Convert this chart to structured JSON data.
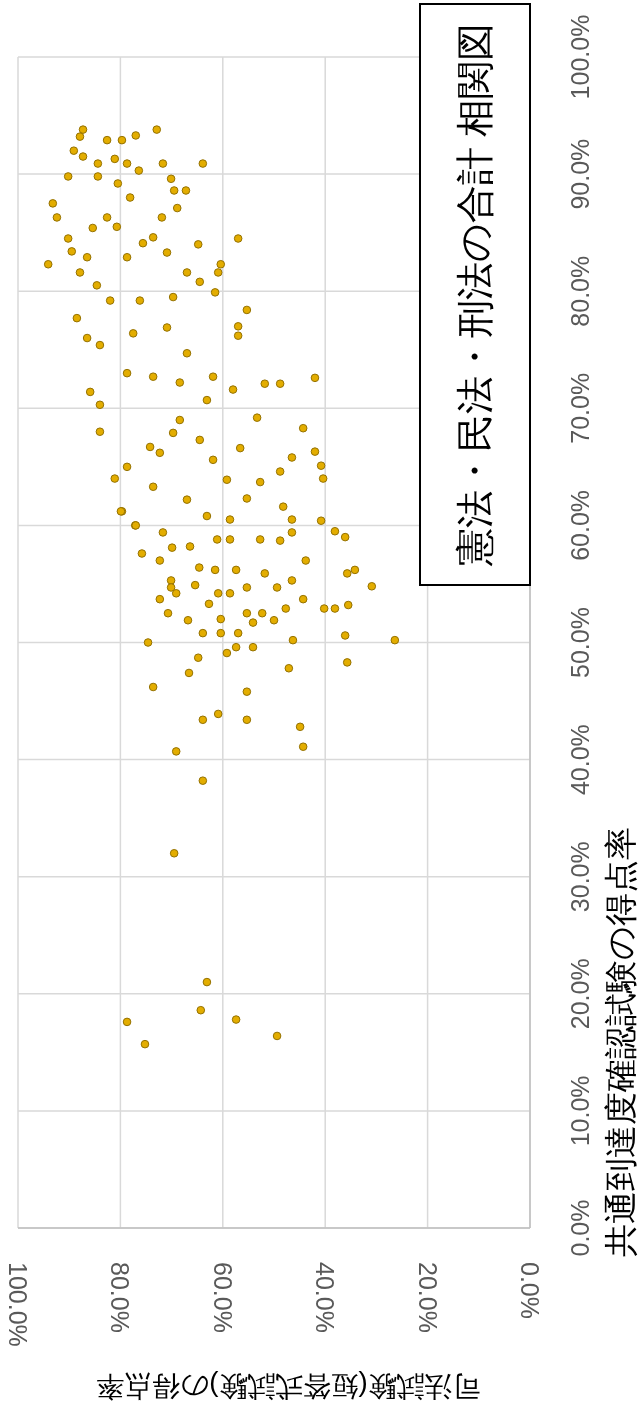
{
  "chart_data": {
    "type": "scatter",
    "title": "憲法・民法・刑法の合計 相関図",
    "xlabel": "司法試験(短答式試験)の得点率",
    "ylabel": "共通到達度確認試験の得点率",
    "xlim": [
      100,
      0
    ],
    "ylim": [
      0,
      100
    ],
    "yticks": [
      {
        "value": 0,
        "label": "0.0%"
      },
      {
        "value": 10,
        "label": "10.0%"
      },
      {
        "value": 20,
        "label": "20.0%"
      },
      {
        "value": 30,
        "label": "30.0%"
      },
      {
        "value": 40,
        "label": "40.0%"
      },
      {
        "value": 50,
        "label": "50.0%"
      },
      {
        "value": 60,
        "label": "60.0%"
      },
      {
        "value": 70,
        "label": "70.0%"
      },
      {
        "value": 80,
        "label": "80.0%"
      },
      {
        "value": 90,
        "label": "90.0%"
      },
      {
        "value": 100,
        "label": "100.0%"
      }
    ],
    "xticks": [
      {
        "value": 0,
        "label": "0.0%"
      },
      {
        "value": 20,
        "label": "20.0%"
      },
      {
        "value": 40,
        "label": "40.0%"
      },
      {
        "value": 60,
        "label": "60.0%"
      },
      {
        "value": 80,
        "label": "80.0%"
      },
      {
        "value": 100,
        "label": "100.0%"
      }
    ],
    "grid": true,
    "marker": "circle",
    "series": [
      {
        "color": "#e3ad00",
        "values": [
          93.8,
          93.8,
          93.2,
          92.9,
          92.9,
          93.3,
          92.0,
          91.5,
          90.9,
          91.3,
          90.9,
          90.9,
          90.9,
          89.8,
          89.8,
          90.3,
          89.6,
          89.2,
          88.6,
          88.6,
          87.5,
          86.3,
          88.0,
          87.1,
          86.3,
          86.3,
          84.5,
          84.5,
          82.3,
          83.4,
          85.4,
          84.0,
          82.3,
          81.6,
          77.7,
          79.9,
          78.4,
          77.0,
          76.2,
          72.6,
          72.1,
          72.1,
          68.3,
          66.3,
          65.1,
          64.0,
          59.5,
          65.8,
          64.6,
          61.6,
          63.7,
          62.3,
          59.4,
          60.5,
          60.4,
          76.0,
          71.4,
          70.3,
          68.0,
          64.0,
          61.2,
          60.0,
          65.0,
          66.7,
          67.9,
          67.3,
          65.6,
          63.9,
          66.6,
          69.2,
          70.7,
          72.2,
          72.7,
          73.0,
          75.4,
          76.4,
          76.9,
          74.7,
          72.7,
          71.6,
          79.2,
          79.2,
          79.5,
          80.8,
          81.6,
          82.9,
          84.1,
          83.3,
          82.9,
          81.6,
          80.5,
          85.5,
          84.6,
          69.0,
          66.2,
          62.2,
          60.8,
          60.5,
          63.3,
          58.1,
          61.2,
          60.0,
          59.4,
          57.6,
          57.0,
          58.2,
          58.8,
          58.8,
          58.8,
          58.7,
          57.0,
          55.3,
          54.7,
          55.9,
          54.7,
          56.2,
          56.2,
          56.4,
          55.3,
          54.7,
          54.9,
          54.2,
          53.7,
          54.2,
          54.2,
          53.7,
          52.9,
          52.9,
          52.9,
          53.3,
          52.5,
          51.9,
          52.0,
          52.5,
          52.5,
          51.9,
          51.7,
          50.8,
          50.8,
          50.8,
          50.2,
          49.6,
          49.6,
          49.1,
          50.0,
          48.7,
          47.4,
          47.8,
          46.2,
          45.8,
          43.9,
          43.4,
          43.4,
          42.8,
          41.1,
          40.7,
          38.2,
          32.0,
          21.0,
          18.6,
          17.6,
          15.7,
          17.8,
          16.4,
          50.2,
          54.8,
          56.2,
          53.2,
          50.6,
          48.3,
          59.0,
          55.9
        ],
        "x": [
          87.3,
          72.9,
          87.9,
          82.6,
          79.7,
          77.0,
          89.1,
          87.3,
          84.4,
          81.1,
          78.7,
          71.7,
          63.9,
          90.2,
          84.4,
          76.4,
          70.1,
          80.5,
          69.5,
          67.2,
          93.2,
          92.4,
          78.1,
          68.9,
          82.6,
          71.9,
          57.0,
          90.2,
          94.1,
          89.5,
          85.4,
          64.8,
          60.4,
          60.9,
          88.5,
          61.5,
          55.3,
          57.0,
          57.0,
          42.0,
          48.8,
          51.8,
          44.3,
          42.0,
          40.8,
          40.4,
          38.1,
          46.5,
          48.8,
          48.2,
          52.7,
          55.3,
          46.5,
          46.5,
          40.8,
          86.5,
          85.9,
          84.0,
          84.0,
          81.1,
          79.7,
          77.1,
          78.7,
          74.2,
          69.7,
          64.5,
          61.9,
          59.2,
          56.6,
          53.3,
          63.1,
          68.4,
          73.6,
          78.7,
          84.0,
          77.5,
          70.9,
          67.0,
          61.9,
          58.0,
          82.0,
          76.2,
          69.7,
          64.5,
          67.0,
          78.7,
          75.6,
          70.9,
          86.5,
          87.9,
          84.6,
          80.7,
          73.6,
          68.4,
          72.3,
          67.0,
          63.1,
          58.6,
          73.6,
          69.9,
          79.9,
          77.0,
          71.7,
          75.8,
          72.3,
          66.4,
          61.1,
          58.6,
          52.7,
          48.8,
          43.8,
          46.5,
          49.4,
          51.8,
          55.3,
          57.4,
          61.5,
          64.6,
          70.1,
          70.1,
          65.4,
          69.1,
          72.3,
          60.9,
          58.6,
          44.3,
          40.2,
          38.1,
          47.7,
          62.7,
          70.7,
          66.8,
          60.4,
          55.3,
          52.3,
          50.0,
          54.1,
          63.9,
          60.4,
          57.0,
          46.3,
          54.1,
          57.4,
          59.2,
          74.6,
          64.8,
          66.6,
          47.1,
          73.6,
          55.3,
          60.9,
          63.9,
          55.3,
          44.9,
          44.3,
          69.1,
          63.9,
          69.5,
          63.1,
          64.3,
          78.7,
          75.2,
          57.4,
          49.4,
          26.4,
          30.9,
          34.2,
          35.5,
          36.1,
          35.7,
          36.1,
          35.7
        ]
      }
    ]
  }
}
